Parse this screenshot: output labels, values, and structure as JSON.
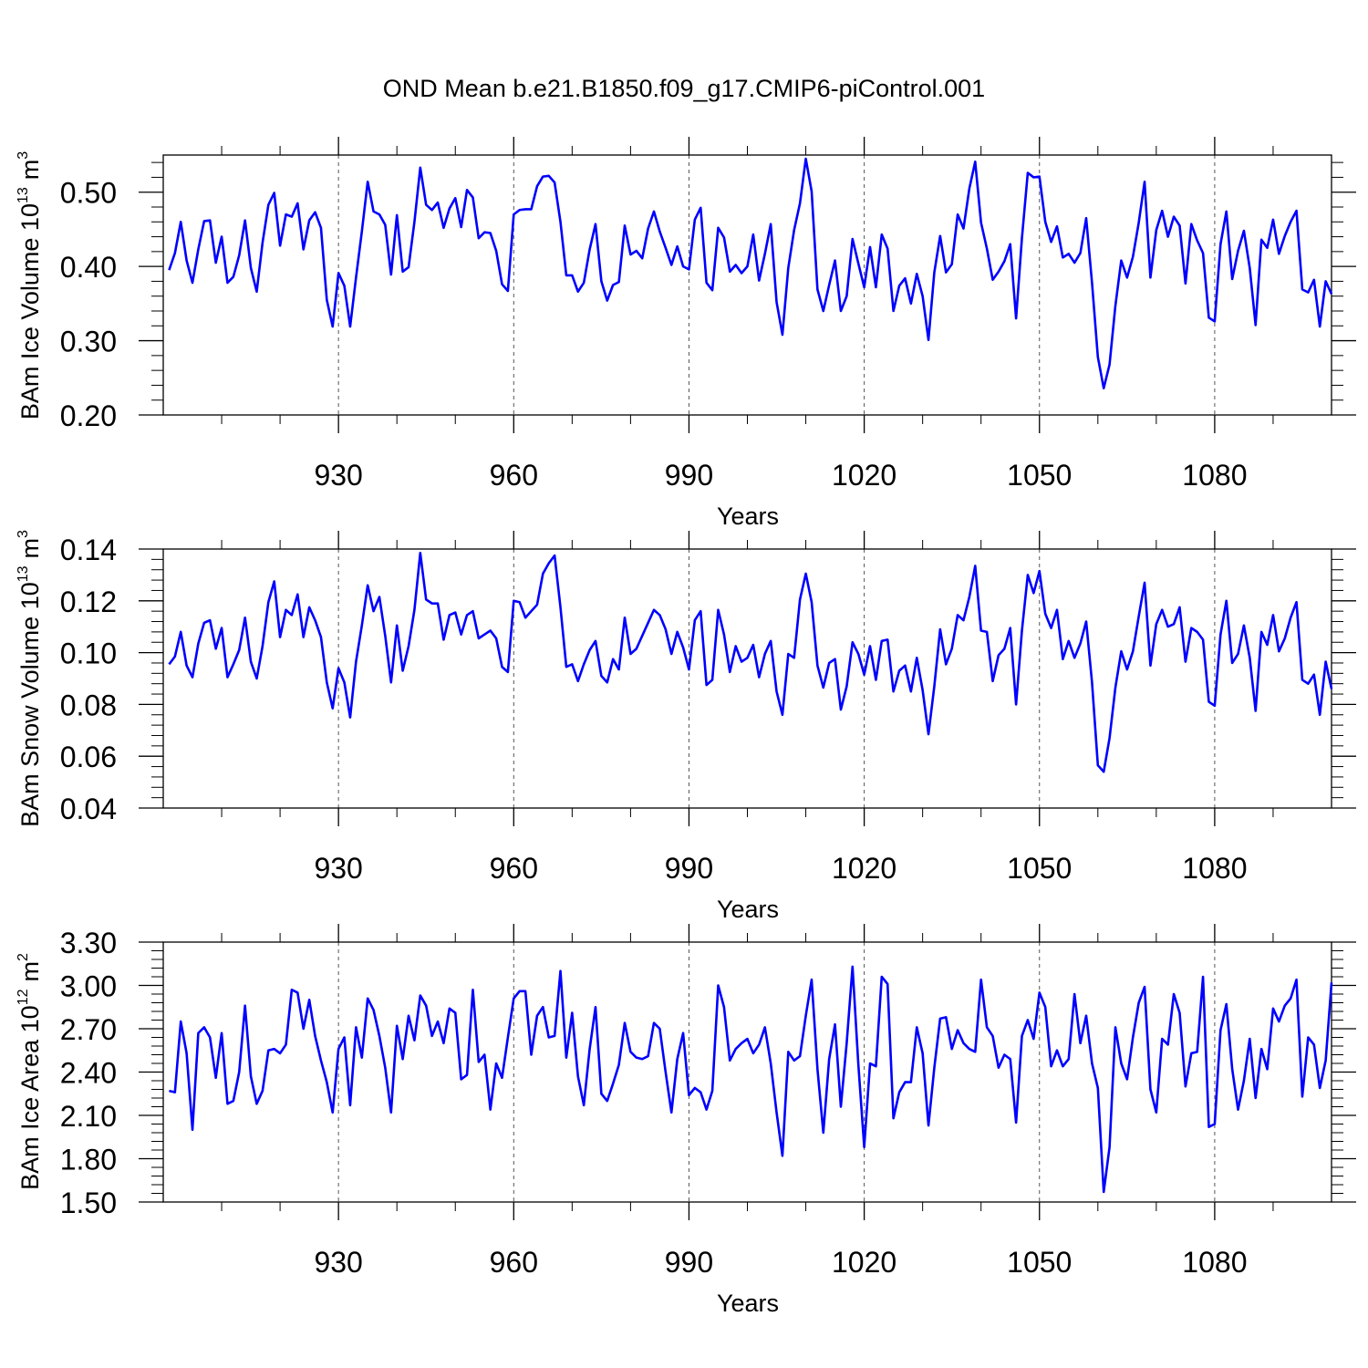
{
  "chart_data": {
    "title": "OND Mean b.e21.B1850.f09_g17.CMIP6-piControl.001",
    "type": "line",
    "line_color": "#0000ff",
    "x": [
      901,
      902,
      903,
      904,
      905,
      906,
      907,
      908,
      909,
      910,
      911,
      912,
      913,
      914,
      915,
      916,
      917,
      918,
      919,
      920,
      921,
      922,
      923,
      924,
      925,
      926,
      927,
      928,
      929,
      930,
      931,
      932,
      933,
      934,
      935,
      936,
      937,
      938,
      939,
      940,
      941,
      942,
      943,
      944,
      945,
      946,
      947,
      948,
      949,
      950,
      951,
      952,
      953,
      954,
      955,
      956,
      957,
      958,
      959,
      960,
      961,
      962,
      963,
      964,
      965,
      966,
      967,
      968,
      969,
      970,
      971,
      972,
      973,
      974,
      975,
      976,
      977,
      978,
      979,
      980,
      981,
      982,
      983,
      984,
      985,
      986,
      987,
      988,
      989,
      990,
      991,
      992,
      993,
      994,
      995,
      996,
      997,
      998,
      999,
      1000,
      1001,
      1002,
      1003,
      1004,
      1005,
      1006,
      1007,
      1008,
      1009,
      1010,
      1011,
      1012,
      1013,
      1014,
      1015,
      1016,
      1017,
      1018,
      1019,
      1020,
      1021,
      1022,
      1023,
      1024,
      1025,
      1026,
      1027,
      1028,
      1029,
      1030,
      1031,
      1032,
      1033,
      1034,
      1035,
      1036,
      1037,
      1038,
      1039,
      1040,
      1041,
      1042,
      1043,
      1044,
      1045,
      1046,
      1047,
      1048,
      1049,
      1050,
      1051,
      1052,
      1053,
      1054,
      1055,
      1056,
      1057,
      1058,
      1059,
      1060,
      1061,
      1062,
      1063,
      1064,
      1065,
      1066,
      1067,
      1068,
      1069,
      1070,
      1071,
      1072,
      1073,
      1074,
      1075,
      1076,
      1077,
      1078,
      1079,
      1080,
      1081,
      1082,
      1083,
      1084,
      1085,
      1086,
      1087,
      1088,
      1089,
      1090,
      1091,
      1092,
      1093,
      1094,
      1095,
      1096,
      1097,
      1098,
      1099,
      1100
    ],
    "xlim": [
      900,
      1100
    ],
    "xticks": [
      930,
      960,
      990,
      1020,
      1050,
      1080
    ],
    "xlabel": "Years",
    "panels": [
      {
        "ylabel": "BAm Ice Volume 10",
        "ylabel_exp": "13",
        "ylabel_unit": "m",
        "ylabel_unit_exp": "3",
        "ylim": [
          0.2,
          0.55
        ],
        "yticks": [
          0.2,
          0.3,
          0.4,
          0.5
        ],
        "ytick_labels": [
          "0.20",
          "0.30",
          "0.40",
          "0.50"
        ],
        "values": [
          0.395,
          0.418,
          0.46,
          0.408,
          0.378,
          0.423,
          0.461,
          0.462,
          0.405,
          0.44,
          0.378,
          0.386,
          0.415,
          0.462,
          0.398,
          0.366,
          0.432,
          0.483,
          0.499,
          0.428,
          0.47,
          0.467,
          0.485,
          0.423,
          0.462,
          0.473,
          0.452,
          0.355,
          0.319,
          0.391,
          0.374,
          0.319,
          0.385,
          0.447,
          0.514,
          0.474,
          0.47,
          0.456,
          0.389,
          0.469,
          0.393,
          0.399,
          0.46,
          0.533,
          0.483,
          0.476,
          0.486,
          0.452,
          0.478,
          0.492,
          0.453,
          0.503,
          0.493,
          0.438,
          0.446,
          0.445,
          0.421,
          0.376,
          0.367,
          0.47,
          0.476,
          0.477,
          0.477,
          0.508,
          0.521,
          0.522,
          0.513,
          0.46,
          0.388,
          0.388,
          0.366,
          0.378,
          0.423,
          0.457,
          0.38,
          0.354,
          0.375,
          0.379,
          0.455,
          0.416,
          0.421,
          0.411,
          0.451,
          0.474,
          0.447,
          0.425,
          0.402,
          0.427,
          0.4,
          0.396,
          0.463,
          0.479,
          0.378,
          0.368,
          0.452,
          0.439,
          0.393,
          0.402,
          0.391,
          0.4,
          0.443,
          0.381,
          0.417,
          0.457,
          0.352,
          0.308,
          0.398,
          0.449,
          0.485,
          0.545,
          0.501,
          0.369,
          0.34,
          0.375,
          0.408,
          0.34,
          0.36,
          0.437,
          0.404,
          0.372,
          0.426,
          0.372,
          0.443,
          0.424,
          0.34,
          0.374,
          0.384,
          0.35,
          0.39,
          0.36,
          0.301,
          0.392,
          0.441,
          0.392,
          0.403,
          0.47,
          0.451,
          0.505,
          0.541,
          0.459,
          0.424,
          0.382,
          0.393,
          0.407,
          0.43,
          0.33,
          0.438,
          0.526,
          0.52,
          0.521,
          0.46,
          0.433,
          0.454,
          0.412,
          0.417,
          0.405,
          0.418,
          0.465,
          0.378,
          0.278,
          0.236,
          0.268,
          0.347,
          0.408,
          0.385,
          0.413,
          0.459,
          0.514,
          0.385,
          0.449,
          0.475,
          0.44,
          0.467,
          0.455,
          0.377,
          0.457,
          0.435,
          0.418,
          0.331,
          0.326,
          0.43,
          0.474,
          0.383,
          0.421,
          0.448,
          0.398,
          0.321,
          0.436,
          0.425,
          0.463,
          0.417,
          0.441,
          0.46,
          0.475,
          0.369,
          0.365,
          0.382,
          0.319,
          0.38,
          0.363
        ]
      },
      {
        "ylabel": "BAm Snow Volume 10",
        "ylabel_exp": "13",
        "ylabel_unit": "m",
        "ylabel_unit_exp": "3",
        "ylim": [
          0.04,
          0.14
        ],
        "yticks": [
          0.04,
          0.06,
          0.08,
          0.1,
          0.12,
          0.14
        ],
        "ytick_labels": [
          "0.04",
          "0.06",
          "0.08",
          "0.10",
          "0.12",
          "0.14"
        ],
        "values": [
          0.0955,
          0.0985,
          0.108,
          0.095,
          0.0905,
          0.1035,
          0.1115,
          0.1125,
          0.1015,
          0.1095,
          0.0905,
          0.0955,
          0.101,
          0.1135,
          0.0965,
          0.09,
          0.1025,
          0.1195,
          0.1275,
          0.106,
          0.1165,
          0.1145,
          0.1225,
          0.106,
          0.1175,
          0.1125,
          0.106,
          0.0885,
          0.0785,
          0.094,
          0.0885,
          0.075,
          0.0965,
          0.1105,
          0.126,
          0.116,
          0.1215,
          0.1065,
          0.0885,
          0.1105,
          0.093,
          0.1025,
          0.1165,
          0.1385,
          0.1205,
          0.119,
          0.119,
          0.105,
          0.1145,
          0.1155,
          0.107,
          0.1145,
          0.116,
          0.1055,
          0.107,
          0.1085,
          0.1055,
          0.0945,
          0.0925,
          0.12,
          0.1195,
          0.1135,
          0.116,
          0.1185,
          0.1305,
          0.1345,
          0.1375,
          0.1175,
          0.0945,
          0.0955,
          0.089,
          0.0955,
          0.101,
          0.1045,
          0.091,
          0.0885,
          0.0975,
          0.0935,
          0.1135,
          0.0995,
          0.1015,
          0.1065,
          0.1115,
          0.1165,
          0.1145,
          0.109,
          0.0995,
          0.108,
          0.102,
          0.0935,
          0.1125,
          0.116,
          0.0875,
          0.0895,
          0.1165,
          0.107,
          0.0925,
          0.1025,
          0.0965,
          0.098,
          0.103,
          0.0905,
          0.0995,
          0.1045,
          0.085,
          0.076,
          0.0995,
          0.098,
          0.1205,
          0.1305,
          0.1195,
          0.095,
          0.0865,
          0.096,
          0.0975,
          0.078,
          0.087,
          0.104,
          0.0995,
          0.0915,
          0.1025,
          0.0895,
          0.1045,
          0.105,
          0.085,
          0.093,
          0.095,
          0.085,
          0.098,
          0.0855,
          0.0685,
          0.087,
          0.109,
          0.0955,
          0.1015,
          0.1145,
          0.1125,
          0.1215,
          0.1335,
          0.1085,
          0.108,
          0.089,
          0.099,
          0.1015,
          0.1095,
          0.08,
          0.1085,
          0.13,
          0.123,
          0.1315,
          0.115,
          0.1095,
          0.1165,
          0.0975,
          0.1045,
          0.098,
          0.1035,
          0.112,
          0.0885,
          0.0565,
          0.054,
          0.067,
          0.0865,
          0.1005,
          0.0935,
          0.1005,
          0.114,
          0.127,
          0.095,
          0.111,
          0.1165,
          0.11,
          0.111,
          0.1175,
          0.0965,
          0.1095,
          0.108,
          0.105,
          0.081,
          0.0795,
          0.107,
          0.12,
          0.096,
          0.0995,
          0.1105,
          0.098,
          0.0775,
          0.108,
          0.103,
          0.1145,
          0.1005,
          0.1055,
          0.1135,
          0.1195,
          0.0895,
          0.088,
          0.0915,
          0.076,
          0.0965,
          0.086
        ]
      },
      {
        "ylabel": "BAm Ice Area 10",
        "ylabel_exp": "12",
        "ylabel_unit": "m",
        "ylabel_unit_exp": "2",
        "ylim": [
          1.5,
          3.3
        ],
        "yticks": [
          1.5,
          1.8,
          2.1,
          2.4,
          2.7,
          3.0,
          3.3
        ],
        "ytick_labels": [
          "1.50",
          "1.80",
          "2.10",
          "2.40",
          "2.70",
          "3.00",
          "3.30"
        ],
        "values": [
          2.27,
          2.26,
          2.75,
          2.53,
          2.0,
          2.67,
          2.71,
          2.64,
          2.36,
          2.67,
          2.18,
          2.2,
          2.4,
          2.86,
          2.37,
          2.18,
          2.27,
          2.55,
          2.56,
          2.53,
          2.59,
          2.97,
          2.95,
          2.7,
          2.9,
          2.65,
          2.48,
          2.33,
          2.12,
          2.56,
          2.64,
          2.17,
          2.71,
          2.5,
          2.91,
          2.83,
          2.65,
          2.43,
          2.12,
          2.72,
          2.49,
          2.79,
          2.62,
          2.93,
          2.86,
          2.65,
          2.75,
          2.6,
          2.84,
          2.81,
          2.35,
          2.38,
          2.97,
          2.47,
          2.52,
          2.14,
          2.46,
          2.36,
          2.64,
          2.91,
          2.96,
          2.96,
          2.52,
          2.79,
          2.85,
          2.64,
          2.65,
          3.1,
          2.5,
          2.81,
          2.37,
          2.17,
          2.56,
          2.85,
          2.25,
          2.2,
          2.32,
          2.45,
          2.74,
          2.54,
          2.5,
          2.49,
          2.51,
          2.74,
          2.7,
          2.4,
          2.12,
          2.49,
          2.67,
          2.24,
          2.29,
          2.26,
          2.14,
          2.27,
          3.0,
          2.85,
          2.48,
          2.56,
          2.6,
          2.63,
          2.53,
          2.59,
          2.71,
          2.46,
          2.12,
          1.82,
          2.54,
          2.48,
          2.51,
          2.79,
          3.04,
          2.42,
          1.98,
          2.49,
          2.73,
          2.16,
          2.6,
          3.13,
          2.45,
          1.88,
          2.46,
          2.44,
          3.06,
          3.01,
          2.08,
          2.26,
          2.33,
          2.33,
          2.71,
          2.53,
          2.03,
          2.43,
          2.77,
          2.78,
          2.56,
          2.69,
          2.6,
          2.56,
          2.54,
          3.04,
          2.71,
          2.65,
          2.43,
          2.52,
          2.49,
          2.05,
          2.65,
          2.76,
          2.63,
          2.95,
          2.85,
          2.44,
          2.55,
          2.44,
          2.49,
          2.94,
          2.6,
          2.79,
          2.46,
          2.29,
          1.57,
          1.88,
          2.71,
          2.46,
          2.35,
          2.64,
          2.88,
          2.99,
          2.28,
          2.12,
          2.63,
          2.59,
          2.94,
          2.81,
          2.3,
          2.53,
          2.54,
          3.06,
          2.02,
          2.04,
          2.69,
          2.87,
          2.42,
          2.14,
          2.34,
          2.63,
          2.22,
          2.56,
          2.42,
          2.84,
          2.75,
          2.86,
          2.91,
          3.04,
          2.23,
          2.64,
          2.59,
          2.29,
          2.48,
          3.02
        ]
      }
    ]
  }
}
